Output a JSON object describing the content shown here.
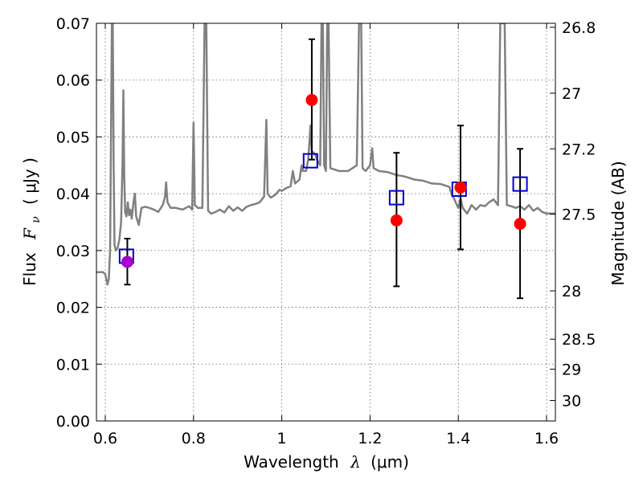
{
  "chart_data": {
    "type": "scatter",
    "xlabel": "Wavelength",
    "xlabel_symbol": "λ",
    "xlabel_unit": "(μm)",
    "ylabel": "Flux",
    "ylabel_symbol": "F",
    "ylabel_symbol_sub": "ν",
    "ylabel_unit": "( μJy )",
    "ylabel_right": "Magnitude (AB)",
    "xlim": [
      0.58,
      1.62
    ],
    "ylim": [
      0.0,
      0.07
    ],
    "grid": true,
    "x_ticks": [
      {
        "value": 0.6,
        "label": "0.6"
      },
      {
        "value": 0.8,
        "label": "0.8"
      },
      {
        "value": 1.0,
        "label": "1"
      },
      {
        "value": 1.2,
        "label": "1.2"
      },
      {
        "value": 1.4,
        "label": "1.4"
      },
      {
        "value": 1.6,
        "label": "1.6"
      }
    ],
    "y_ticks": [
      {
        "value": 0.0,
        "label": "0.00"
      },
      {
        "value": 0.01,
        "label": "0.01"
      },
      {
        "value": 0.02,
        "label": "0.02"
      },
      {
        "value": 0.03,
        "label": "0.03"
      },
      {
        "value": 0.04,
        "label": "0.04"
      },
      {
        "value": 0.05,
        "label": "0.05"
      },
      {
        "value": 0.06,
        "label": "0.06"
      },
      {
        "value": 0.07,
        "label": "0.07"
      }
    ],
    "right_ticks": [
      {
        "flux": 0.0693,
        "label": "26.8"
      },
      {
        "flux": 0.0577,
        "label": "27"
      },
      {
        "flux": 0.0479,
        "label": "27.2"
      },
      {
        "flux": 0.0364,
        "label": "27.5"
      },
      {
        "flux": 0.0229,
        "label": "28"
      },
      {
        "flux": 0.0144,
        "label": "28.5"
      },
      {
        "flux": 0.0091,
        "label": "29"
      },
      {
        "flux": 0.0036,
        "label": "30"
      }
    ],
    "series": [
      {
        "kind": "spectrum",
        "color": "#808080",
        "points": [
          [
            0.58,
            0.0262
          ],
          [
            0.595,
            0.0262
          ],
          [
            0.6,
            0.0258
          ],
          [
            0.605,
            0.024
          ],
          [
            0.608,
            0.025
          ],
          [
            0.611,
            0.03
          ],
          [
            0.613,
            0.05
          ],
          [
            0.615,
            0.07
          ],
          [
            0.617,
            0.07
          ],
          [
            0.619,
            0.045
          ],
          [
            0.621,
            0.031
          ],
          [
            0.624,
            0.03
          ],
          [
            0.628,
            0.0305
          ],
          [
            0.632,
            0.032
          ],
          [
            0.636,
            0.035
          ],
          [
            0.639,
            0.045
          ],
          [
            0.641,
            0.0582
          ],
          [
            0.643,
            0.043
          ],
          [
            0.645,
            0.0368
          ],
          [
            0.648,
            0.036
          ],
          [
            0.651,
            0.0385
          ],
          [
            0.654,
            0.0362
          ],
          [
            0.657,
            0.0372
          ],
          [
            0.66,
            0.0356
          ],
          [
            0.664,
            0.0385
          ],
          [
            0.667,
            0.04
          ],
          [
            0.67,
            0.036
          ],
          [
            0.676,
            0.0345
          ],
          [
            0.682,
            0.0375
          ],
          [
            0.69,
            0.0377
          ],
          [
            0.7,
            0.0375
          ],
          [
            0.71,
            0.0372
          ],
          [
            0.72,
            0.0368
          ],
          [
            0.73,
            0.038
          ],
          [
            0.735,
            0.0393
          ],
          [
            0.738,
            0.042
          ],
          [
            0.741,
            0.0385
          ],
          [
            0.748,
            0.0375
          ],
          [
            0.76,
            0.0375
          ],
          [
            0.775,
            0.0372
          ],
          [
            0.79,
            0.0378
          ],
          [
            0.797,
            0.0372
          ],
          [
            0.8,
            0.0525
          ],
          [
            0.803,
            0.038
          ],
          [
            0.81,
            0.0375
          ],
          [
            0.82,
            0.0375
          ],
          [
            0.825,
            0.07
          ],
          [
            0.829,
            0.07
          ],
          [
            0.833,
            0.037
          ],
          [
            0.84,
            0.0365
          ],
          [
            0.85,
            0.0368
          ],
          [
            0.86,
            0.0372
          ],
          [
            0.87,
            0.0367
          ],
          [
            0.88,
            0.0378
          ],
          [
            0.89,
            0.037
          ],
          [
            0.9,
            0.0376
          ],
          [
            0.91,
            0.037
          ],
          [
            0.92,
            0.0377
          ],
          [
            0.93,
            0.038
          ],
          [
            0.94,
            0.0382
          ],
          [
            0.95,
            0.0385
          ],
          [
            0.96,
            0.0395
          ],
          [
            0.965,
            0.053
          ],
          [
            0.968,
            0.04
          ],
          [
            0.975,
            0.0393
          ],
          [
            0.985,
            0.0398
          ],
          [
            0.995,
            0.0407
          ],
          [
            1.0,
            0.0405
          ],
          [
            1.01,
            0.041
          ],
          [
            1.02,
            0.0413
          ],
          [
            1.025,
            0.044
          ],
          [
            1.03,
            0.0418
          ],
          [
            1.04,
            0.0425
          ],
          [
            1.045,
            0.045
          ],
          [
            1.048,
            0.044
          ],
          [
            1.055,
            0.044
          ],
          [
            1.06,
            0.046
          ],
          [
            1.065,
            0.052
          ],
          [
            1.068,
            0.0475
          ],
          [
            1.075,
            0.047
          ],
          [
            1.08,
            0.046
          ],
          [
            1.087,
            0.045
          ],
          [
            1.09,
            0.07
          ],
          [
            1.093,
            0.07
          ],
          [
            1.096,
            0.045
          ],
          [
            1.1,
            0.044
          ],
          [
            1.103,
            0.07
          ],
          [
            1.106,
            0.07
          ],
          [
            1.11,
            0.0445
          ],
          [
            1.13,
            0.044
          ],
          [
            1.15,
            0.044
          ],
          [
            1.17,
            0.045
          ],
          [
            1.175,
            0.07
          ],
          [
            1.18,
            0.07
          ],
          [
            1.183,
            0.0445
          ],
          [
            1.19,
            0.044
          ],
          [
            1.2,
            0.045
          ],
          [
            1.205,
            0.048
          ],
          [
            1.208,
            0.0445
          ],
          [
            1.22,
            0.044
          ],
          [
            1.24,
            0.0438
          ],
          [
            1.26,
            0.0433
          ],
          [
            1.28,
            0.043
          ],
          [
            1.3,
            0.0425
          ],
          [
            1.32,
            0.0423
          ],
          [
            1.34,
            0.0418
          ],
          [
            1.36,
            0.0417
          ],
          [
            1.38,
            0.0412
          ],
          [
            1.385,
            0.0398
          ],
          [
            1.39,
            0.0392
          ],
          [
            1.395,
            0.0383
          ],
          [
            1.4,
            0.0375
          ],
          [
            1.405,
            0.0392
          ],
          [
            1.41,
            0.0375
          ],
          [
            1.42,
            0.0365
          ],
          [
            1.43,
            0.038
          ],
          [
            1.44,
            0.0372
          ],
          [
            1.45,
            0.038
          ],
          [
            1.46,
            0.0378
          ],
          [
            1.47,
            0.0385
          ],
          [
            1.48,
            0.039
          ],
          [
            1.49,
            0.038
          ],
          [
            1.495,
            0.07
          ],
          [
            1.505,
            0.07
          ],
          [
            1.51,
            0.038
          ],
          [
            1.52,
            0.0378
          ],
          [
            1.53,
            0.0375
          ],
          [
            1.54,
            0.0378
          ],
          [
            1.55,
            0.0372
          ],
          [
            1.56,
            0.038
          ],
          [
            1.57,
            0.037
          ],
          [
            1.58,
            0.0375
          ],
          [
            1.59,
            0.0368
          ],
          [
            1.6,
            0.0365
          ],
          [
            1.61,
            0.0365
          ],
          [
            1.62,
            0.0365
          ]
        ]
      },
      {
        "kind": "model_fluxes",
        "marker": "open-square",
        "color": "#0000cc",
        "points": [
          {
            "x": 0.648,
            "y": 0.029
          },
          {
            "x": 1.065,
            "y": 0.0458
          },
          {
            "x": 1.26,
            "y": 0.0393
          },
          {
            "x": 1.402,
            "y": 0.0408
          },
          {
            "x": 1.54,
            "y": 0.0417
          }
        ]
      },
      {
        "kind": "observed_fluxes",
        "marker": "filled-circle",
        "color": "#ff0000",
        "points": [
          {
            "x": 1.068,
            "y": 0.0565,
            "ylow": 0.046,
            "yhigh": 0.0672,
            "color": "#ff0000"
          },
          {
            "x": 1.26,
            "y": 0.0353,
            "ylow": 0.0237,
            "yhigh": 0.0472,
            "color": "#ff0000"
          },
          {
            "x": 1.405,
            "y": 0.0411,
            "ylow": 0.0302,
            "yhigh": 0.052,
            "color": "#ff0000"
          },
          {
            "x": 1.54,
            "y": 0.0347,
            "ylow": 0.0216,
            "yhigh": 0.0479,
            "color": "#ff0000"
          }
        ]
      },
      {
        "kind": "observed_fluxes_optical",
        "marker": "filled-circle",
        "color": "#aa00cc",
        "points": [
          {
            "x": 0.65,
            "y": 0.028,
            "ylow": 0.024,
            "yhigh": 0.0321,
            "color": "#aa00cc"
          }
        ]
      }
    ]
  }
}
